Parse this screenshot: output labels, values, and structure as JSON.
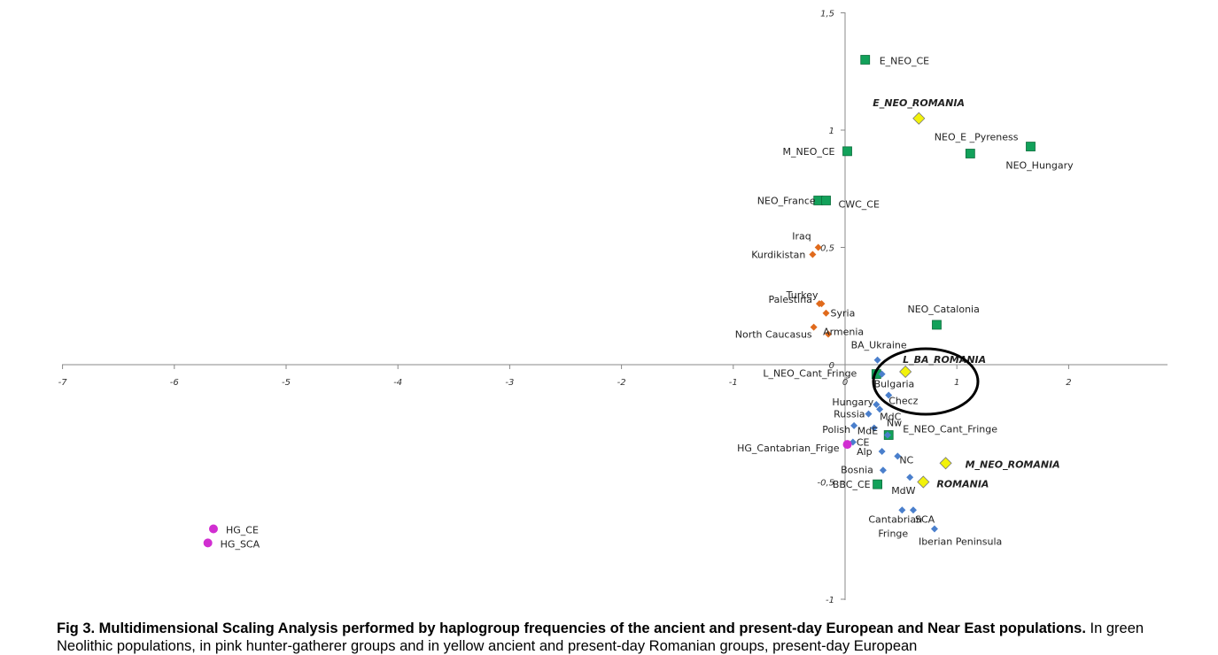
{
  "chart_data": {
    "type": "scatter",
    "title": "",
    "xlabel": "",
    "ylabel": "",
    "xlim": [
      -7,
      2.9
    ],
    "ylim": [
      -1,
      1.5
    ],
    "x_ticks": [
      "-7",
      "-6",
      "-5",
      "-4",
      "-3",
      "-2",
      "-1",
      "0",
      "1",
      "2"
    ],
    "y_ticks": [
      "1,5",
      "1",
      "0,5",
      "0",
      "-0,5",
      "-1"
    ],
    "colors": {
      "green": "#12a15a",
      "orange": "#e06a1c",
      "blue": "#4a7fcc",
      "magenta": "#d12ed1",
      "yellow": "#f2f20a"
    },
    "series": [
      {
        "group": "green",
        "marker": "square",
        "points": [
          {
            "label": "E_NEO_CE",
            "x": 0.18,
            "y": 1.3
          },
          {
            "label": "NEO_E _Pyreness",
            "x": 1.66,
            "y": 0.93
          },
          {
            "label": "NEO_Hungary",
            "x": 1.12,
            "y": 0.9
          },
          {
            "label": "M_NEO_CE",
            "x": 0.02,
            "y": 0.91
          },
          {
            "label": "NEO_France",
            "x": -0.24,
            "y": 0.7
          },
          {
            "label": "CWC_CE",
            "x": -0.17,
            "y": 0.7
          },
          {
            "label": "NEO_Catalonia",
            "x": 0.82,
            "y": 0.17
          },
          {
            "label": "L_NEO_Cant_Fringe",
            "x": 0.28,
            "y": -0.04
          },
          {
            "label": "E_NEO_Cant_Fringe",
            "x": 0.39,
            "y": -0.3
          },
          {
            "label": "BBC_CE",
            "x": 0.29,
            "y": -0.51
          }
        ]
      },
      {
        "group": "orange",
        "marker": "diamond",
        "points": [
          {
            "label": "Iraq",
            "x": -0.24,
            "y": 0.5
          },
          {
            "label": "Kurdikistan",
            "x": -0.29,
            "y": 0.47
          },
          {
            "label": "Turkey",
            "x": -0.21,
            "y": 0.26
          },
          {
            "label": "Syria",
            "x": -0.17,
            "y": 0.22
          },
          {
            "label": "Palestina",
            "x": -0.23,
            "y": 0.26
          },
          {
            "label": "Armenia",
            "x": -0.15,
            "y": 0.13
          },
          {
            "label": "North Caucasus",
            "x": -0.28,
            "y": 0.16
          }
        ]
      },
      {
        "group": "blue",
        "marker": "diamond",
        "points": [
          {
            "label": "BA_Ukraine",
            "x": 0.29,
            "y": 0.02
          },
          {
            "label": "Bulgaria",
            "x": 0.33,
            "y": -0.04
          },
          {
            "label": "Checz",
            "x": 0.39,
            "y": -0.13
          },
          {
            "label": "Hungary",
            "x": 0.28,
            "y": -0.17
          },
          {
            "label": "MdC",
            "x": 0.31,
            "y": -0.19
          },
          {
            "label": "Russia",
            "x": 0.21,
            "y": -0.21
          },
          {
            "label": "Polish",
            "x": 0.08,
            "y": -0.26
          },
          {
            "label": "MdE",
            "x": 0.26,
            "y": -0.27
          },
          {
            "label": "Nw",
            "x": 0.38,
            "y": -0.3
          },
          {
            "label": "CE",
            "x": 0.07,
            "y": -0.33
          },
          {
            "label": "Alp",
            "x": 0.33,
            "y": -0.37
          },
          {
            "label": "NC",
            "x": 0.47,
            "y": -0.39
          },
          {
            "label": "Bosnia",
            "x": 0.34,
            "y": -0.45
          },
          {
            "label": "MdW",
            "x": 0.58,
            "y": -0.48
          },
          {
            "label": "Cantabrian Fringe",
            "x": 0.51,
            "y": -0.62
          },
          {
            "label": "SCA",
            "x": 0.61,
            "y": -0.62
          },
          {
            "label": "Iberian Peninsula",
            "x": 0.8,
            "y": -0.7
          }
        ]
      },
      {
        "group": "magenta",
        "marker": "circle",
        "points": [
          {
            "label": "HG_Cantabrian_Frige",
            "x": 0.02,
            "y": -0.34
          },
          {
            "label": "HG_CE",
            "x": -5.65,
            "y": -0.7
          },
          {
            "label": "HG_SCA",
            "x": -5.7,
            "y": -0.76
          }
        ]
      },
      {
        "group": "yellow",
        "marker": "diamond",
        "points": [
          {
            "label": "E_NEO_ROMANIA",
            "x": 0.66,
            "y": 1.05
          },
          {
            "label": "L_BA_ROMANIA",
            "x": 0.54,
            "y": -0.03
          },
          {
            "label": "M_NEO_ROMANIA",
            "x": 0.9,
            "y": -0.42
          },
          {
            "label": "ROMANIA",
            "x": 0.7,
            "y": -0.5
          }
        ]
      }
    ],
    "annotations": [
      "ellipse around L_BA_ROMANIA"
    ]
  },
  "caption": {
    "bold": "Fig 3. Multidimensional Scaling Analysis performed by haplogroup frequencies of the ancient and present-day European and Near East populations.",
    "text": "In green Neolithic populations, in pink hunter-gatherer groups and in yellow ancient and present-day Romanian groups, present-day European"
  }
}
